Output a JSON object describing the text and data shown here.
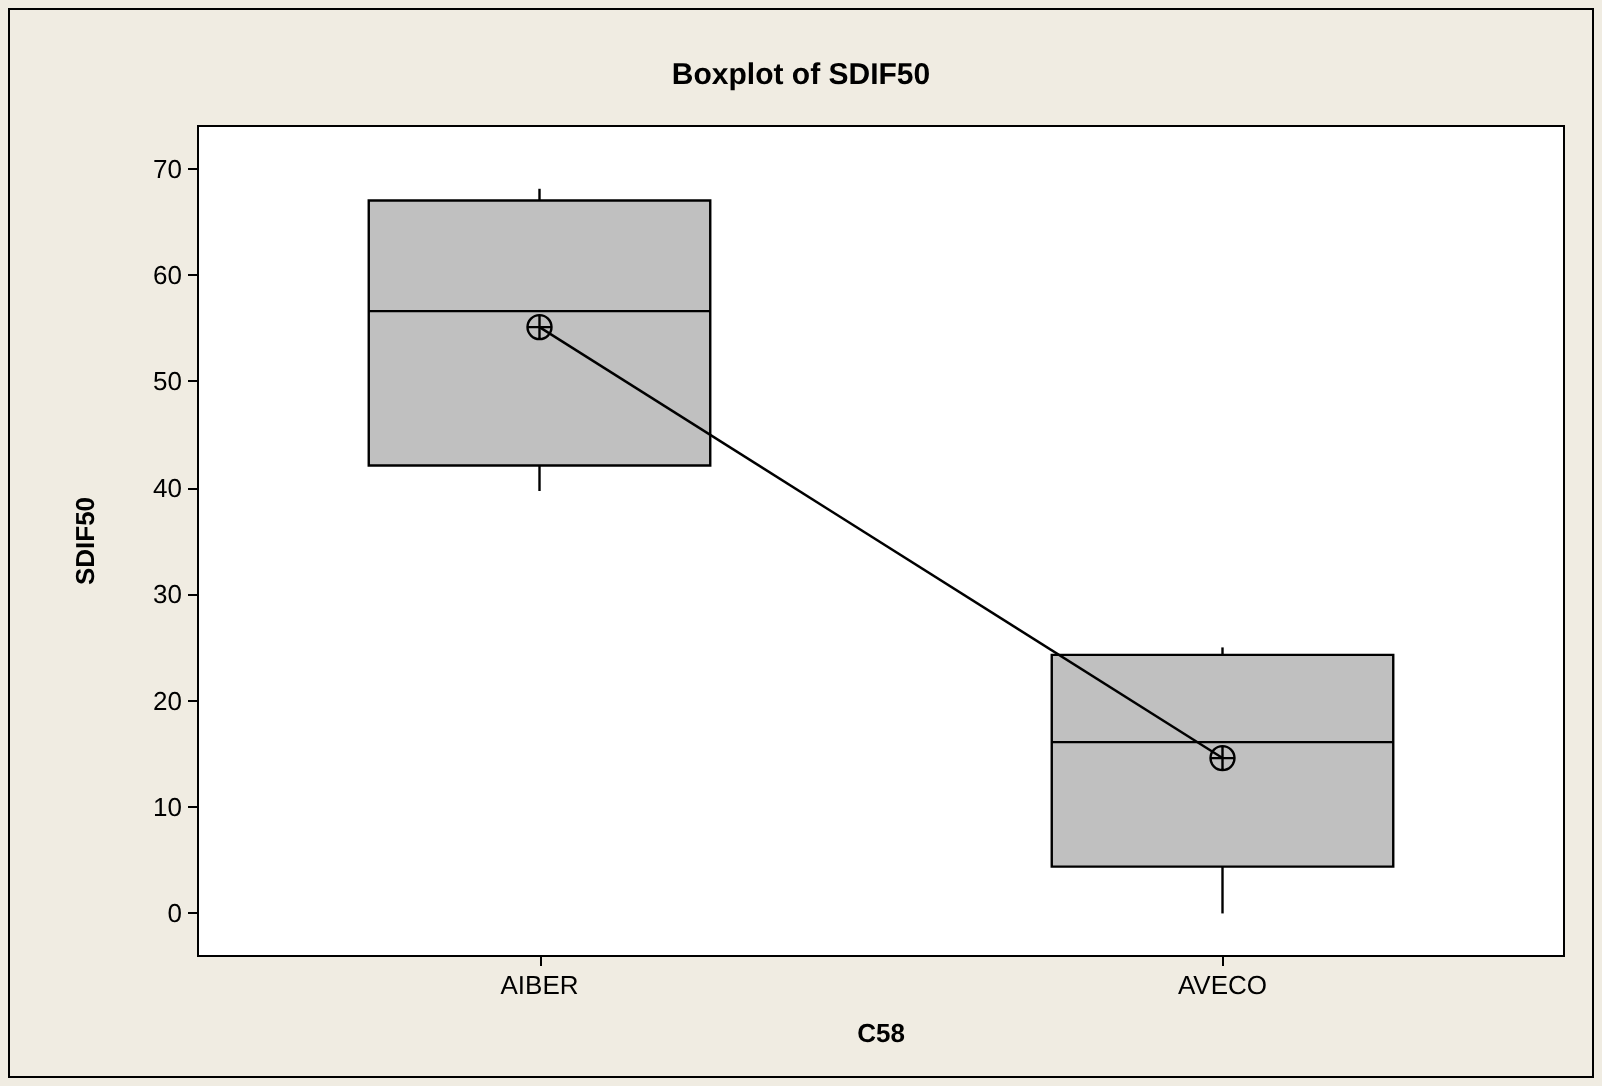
{
  "chart_data": {
    "type": "box",
    "title": "Boxplot of SDIF50",
    "xlabel": "C58",
    "ylabel": "SDIF50",
    "categories": [
      "AIBER",
      "AVECO"
    ],
    "ylim": [
      -4,
      74
    ],
    "yticks": [
      0,
      10,
      20,
      30,
      40,
      50,
      60,
      70
    ],
    "grid": false,
    "series": [
      {
        "color": "#c0c0c0",
        "boxes": [
          {
            "low": 39.7,
            "q1": 42.1,
            "median": 56.6,
            "q3": 67.0,
            "high": 68.1
          },
          {
            "low": 0,
            "q1": 4.4,
            "median": 16.1,
            "q3": 24.3,
            "high": 25
          }
        ]
      },
      {
        "type": "line",
        "color": "#000000",
        "marker": "cross",
        "values": [
          55.1,
          14.6
        ]
      }
    ]
  }
}
